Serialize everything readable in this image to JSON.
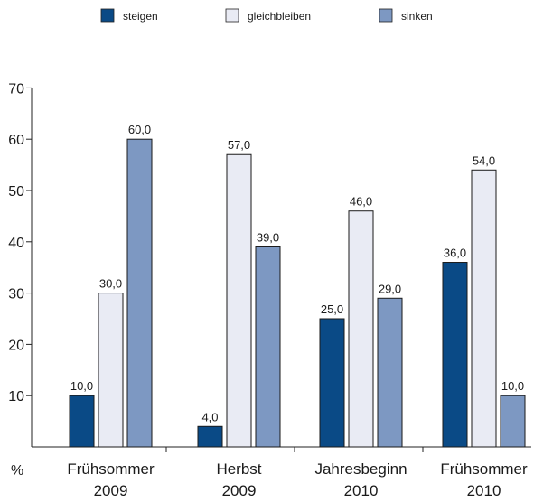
{
  "chart_data": {
    "type": "bar",
    "categories": [
      [
        "Frühsommer",
        "2009"
      ],
      [
        "Herbst",
        "2009"
      ],
      [
        "Jahresbeginn",
        "2010"
      ],
      [
        "Frühsommer",
        "2010"
      ]
    ],
    "series": [
      {
        "name": "steigen",
        "color": "#0a4a86",
        "values": [
          10.0,
          4.0,
          25.0,
          36.0
        ],
        "labels": [
          "10,0",
          "4,0",
          "25,0",
          "36,0"
        ]
      },
      {
        "name": "gleichbleiben",
        "color": "#e9ebf4",
        "values": [
          30.0,
          57.0,
          46.0,
          54.0
        ],
        "labels": [
          "30,0",
          "57,0",
          "46,0",
          "54,0"
        ]
      },
      {
        "name": "sinken",
        "color": "#7d98c2",
        "values": [
          60.0,
          39.0,
          29.0,
          10.0
        ],
        "labels": [
          "60,0",
          "39,0",
          "29,0",
          "10,0"
        ]
      }
    ],
    "ylim": [
      0,
      70
    ],
    "yticks": [
      10,
      20,
      30,
      40,
      50,
      60,
      70
    ],
    "ylabel": "%",
    "grid": false,
    "legend": "top"
  }
}
